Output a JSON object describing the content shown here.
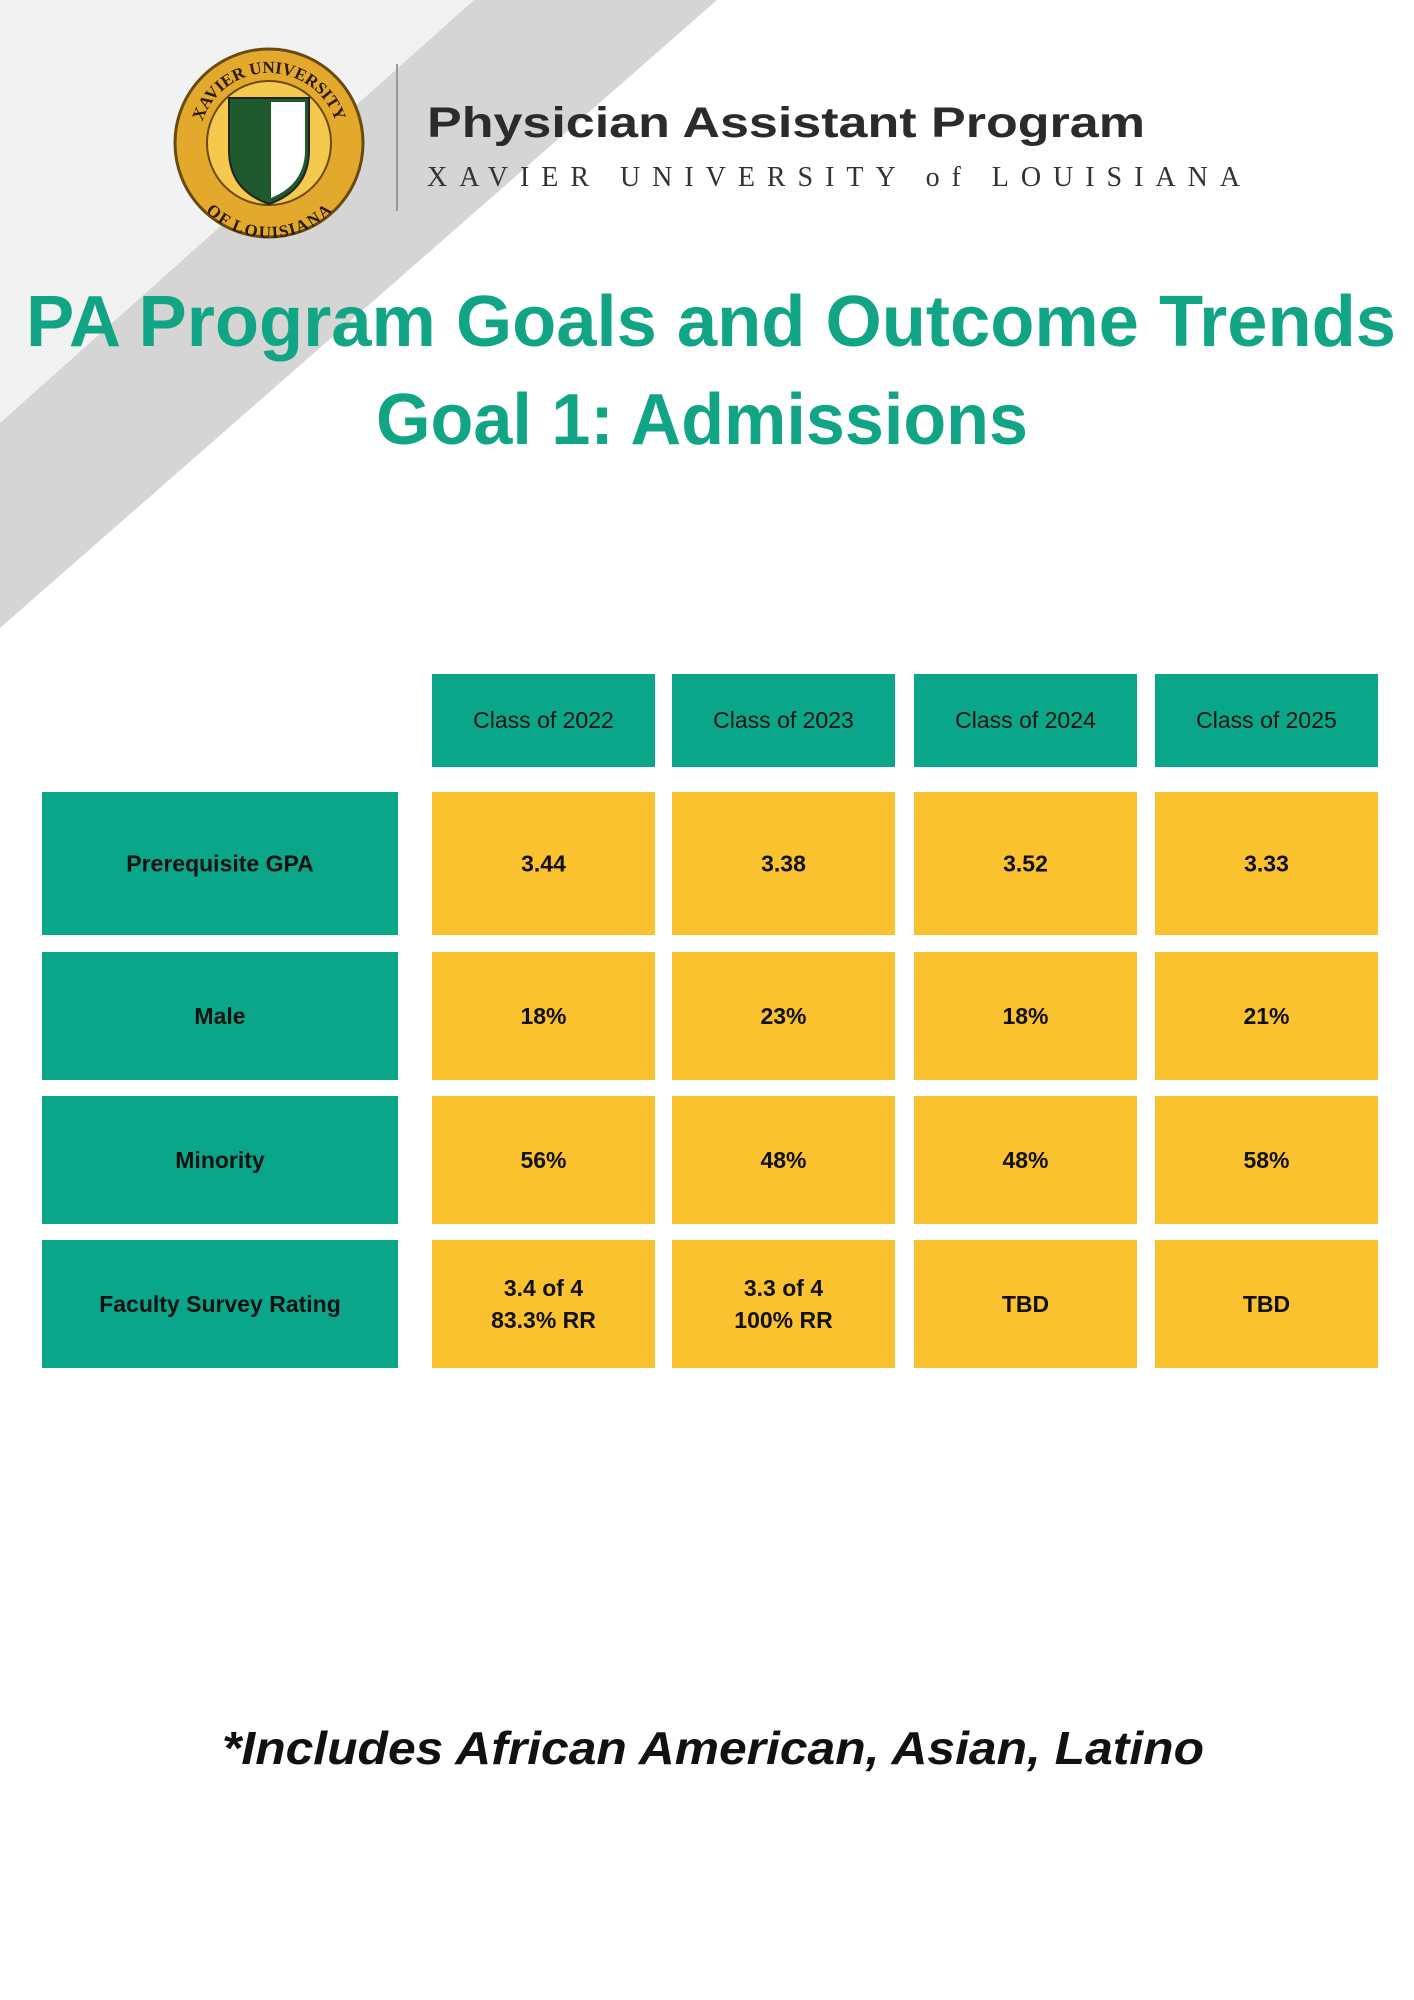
{
  "logo": {
    "top_text": "XAVIER UNIVERSITY",
    "bottom_text": "OF LOUISIANA"
  },
  "header": {
    "program": "Physician Assistant Program",
    "university": "XAVIER UNIVERSITY of LOUISIANA"
  },
  "title": "PA Program Goals and Outcome Trends",
  "subtitle": "Goal 1: Admissions",
  "table": {
    "headers": [
      "Class of 2022",
      "Class of 2023",
      "Class of 2024",
      "Class of 2025"
    ],
    "rows": [
      {
        "label": "Prerequisite GPA",
        "cells": [
          [
            "3.44"
          ],
          [
            "3.38"
          ],
          [
            "3.52"
          ],
          [
            "3.33"
          ]
        ]
      },
      {
        "label": "Male",
        "cells": [
          [
            "18%"
          ],
          [
            "23%"
          ],
          [
            "18%"
          ],
          [
            "21%"
          ]
        ]
      },
      {
        "label": "Minority",
        "cells": [
          [
            "56%"
          ],
          [
            "48%"
          ],
          [
            "48%"
          ],
          [
            "58%"
          ]
        ]
      },
      {
        "label": "Faculty Survey Rating",
        "cells": [
          [
            "3.4 of 4",
            "83.3% RR"
          ],
          [
            "3.3 of 4",
            "100% RR"
          ],
          [
            "TBD"
          ],
          [
            "TBD"
          ]
        ]
      }
    ]
  },
  "footnote": "*Includes African American, Asian, Latino"
}
